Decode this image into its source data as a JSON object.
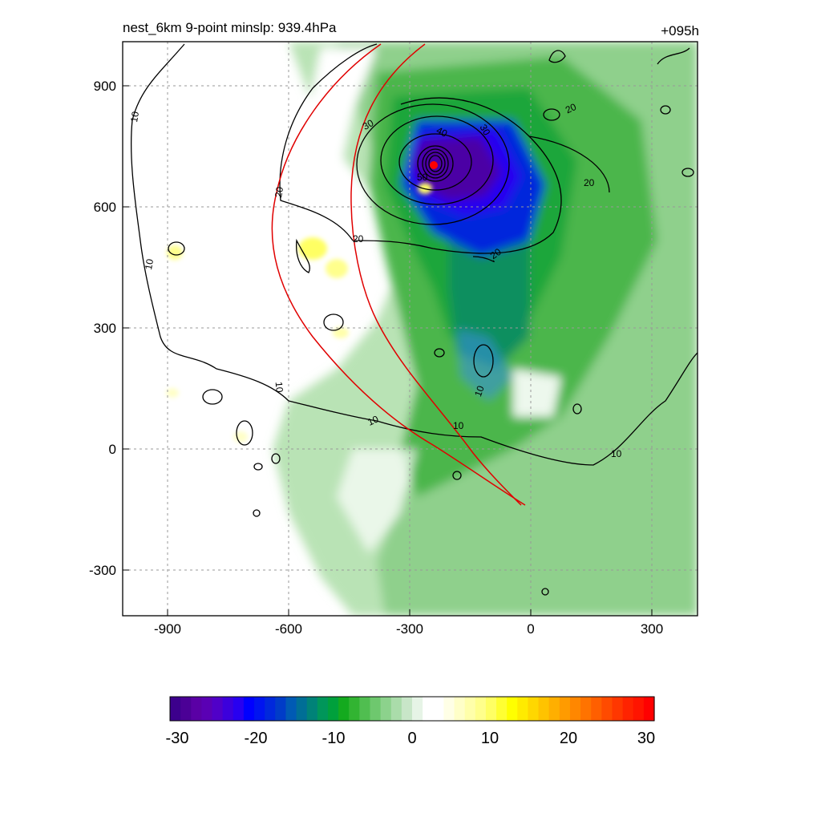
{
  "header": {
    "title": "nest_6km  9-point minslp: 939.4hPa",
    "forecast_hour": "+095h"
  },
  "map": {
    "x_ticks": [
      "-900",
      "-600",
      "-300",
      "0",
      "300"
    ],
    "y_ticks": [
      "900",
      "600",
      "300",
      "0",
      "-300"
    ],
    "contour_labels": [
      "10",
      "10",
      "10",
      "10",
      "10",
      "10",
      "10",
      "20",
      "20",
      "20",
      "20",
      "20",
      "30",
      "30",
      "40",
      "50"
    ],
    "colors": {
      "storm_center": "#ff0000",
      "track_lines": "#e00000",
      "contours": "#000000",
      "grid": "#999999"
    }
  },
  "colorbar": {
    "ticks": [
      "-30",
      "-20",
      "-10",
      "0",
      "10",
      "20",
      "30"
    ],
    "colors": [
      "#3c008c",
      "#4b0096",
      "#5a00a5",
      "#5a00b4",
      "#5000c8",
      "#3c00dc",
      "#2800f0",
      "#0000ff",
      "#0014f0",
      "#0028dc",
      "#003cc8",
      "#005ab4",
      "#006e96",
      "#008278",
      "#00965a",
      "#00a03c",
      "#14aa1e",
      "#32b432",
      "#50be50",
      "#6ec86e",
      "#8cd28c",
      "#aadcaa",
      "#c8e6c8",
      "#e6f4e6",
      "#ffffff",
      "#ffffff",
      "#ffffe6",
      "#ffffc8",
      "#ffffaa",
      "#ffff8c",
      "#ffff64",
      "#ffff32",
      "#ffff00",
      "#ffeb00",
      "#ffd700",
      "#ffc300",
      "#ffaf00",
      "#ff9b00",
      "#ff8700",
      "#ff7300",
      "#ff5f00",
      "#ff4b00",
      "#ff3700",
      "#ff2300",
      "#ff1400",
      "#ff0000"
    ]
  }
}
